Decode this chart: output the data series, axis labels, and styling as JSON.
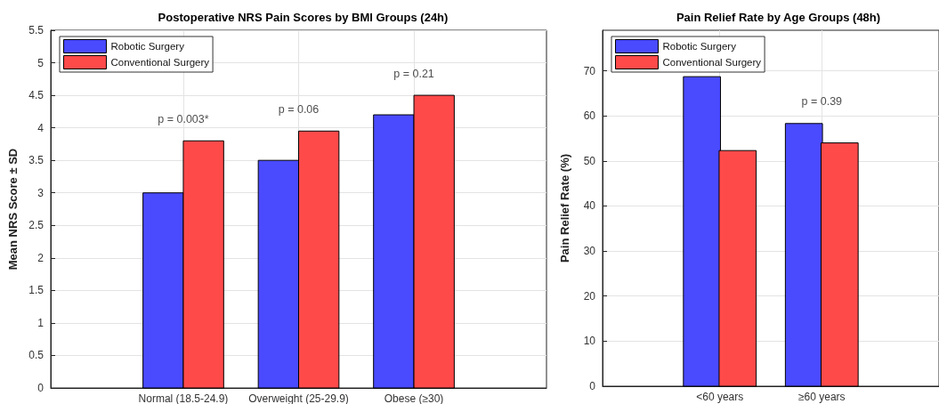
{
  "chart_data": [
    {
      "type": "bar",
      "title": "Postoperative NRS Pain Scores by BMI Groups (24h)",
      "ylabel": "Mean NRS Score ± SD",
      "categories": [
        "Normal (18.5-24.9)",
        "Overweight (25-29.9)",
        "Obese (≥30)"
      ],
      "series": [
        {
          "name": "Robotic Surgery",
          "color": "#4a4aff",
          "values": [
            3.0,
            3.5,
            4.2
          ]
        },
        {
          "name": "Conventional Surgery",
          "color": "#ff4a4a",
          "values": [
            3.8,
            3.95,
            4.5
          ]
        }
      ],
      "ylim": [
        0,
        5.5
      ],
      "yticks": [
        0,
        0.5,
        1,
        1.5,
        2,
        2.5,
        3,
        3.5,
        4,
        4.5,
        5,
        5.5
      ],
      "grid": true,
      "legend": "top left",
      "annotations": [
        "p = 0.003*",
        "p = 0.06",
        "p = 0.21"
      ]
    },
    {
      "type": "bar",
      "title": "Pain Relief Rate by Age Groups (48h)",
      "ylabel": "Pain Relief Rate (%)",
      "categories": [
        "<60 years",
        "≥60 years"
      ],
      "series": [
        {
          "name": "Robotic Surgery",
          "color": "#4a4aff",
          "values": [
            68.7,
            58.3
          ]
        },
        {
          "name": "Conventional Surgery",
          "color": "#ff4a4a",
          "values": [
            52.3,
            54.0
          ]
        }
      ],
      "ylim": [
        0,
        79
      ],
      "yticks": [
        0,
        10,
        20,
        30,
        40,
        50,
        60,
        70
      ],
      "grid": true,
      "legend": "top left",
      "annotations": [
        "p = 0.39"
      ]
    }
  ]
}
